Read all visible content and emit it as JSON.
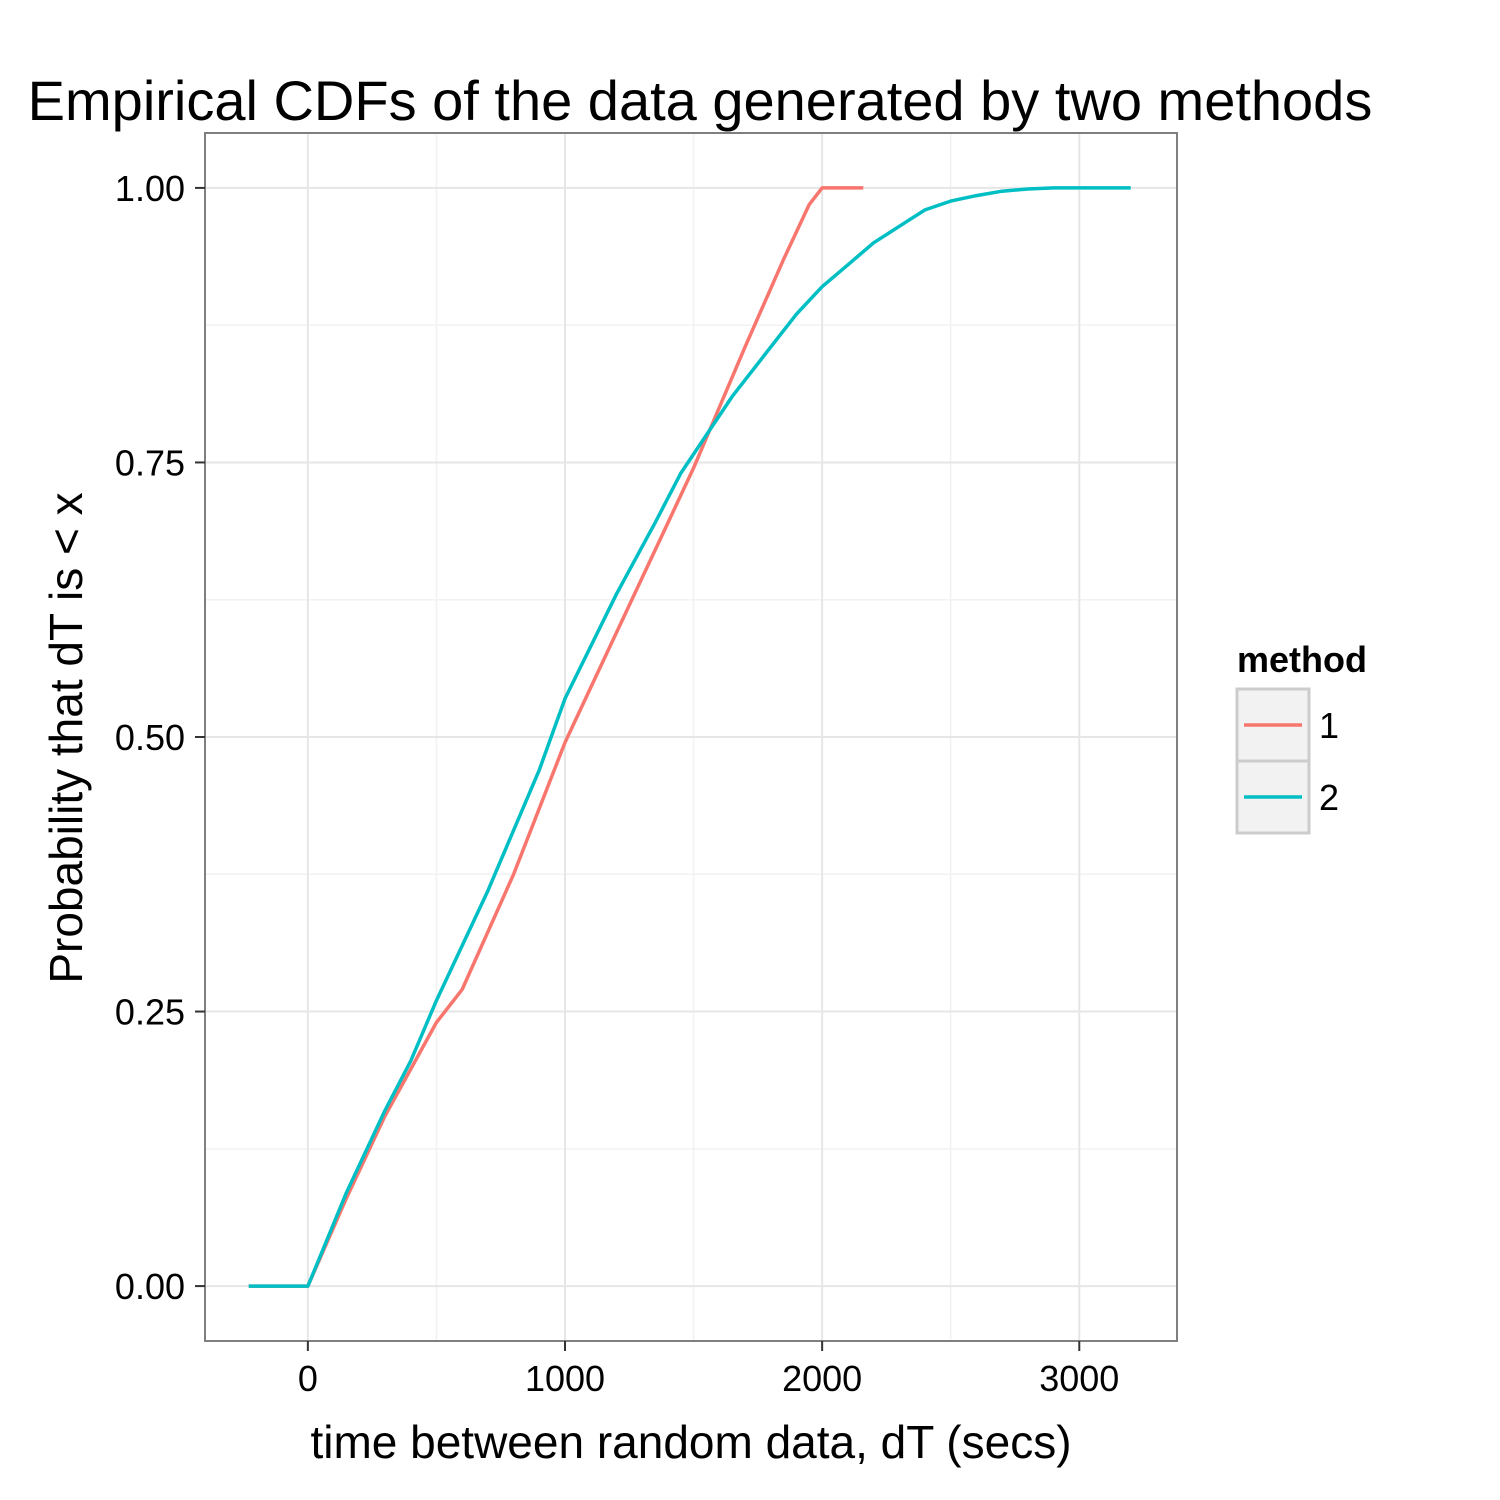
{
  "chart_data": {
    "type": "line",
    "title": "Empirical CDFs of the data generated by two methods",
    "xlabel": "time between random data, dT (secs)",
    "ylabel": "Probability that dT is < x",
    "xlim": [
      -400,
      3380
    ],
    "ylim": [
      -0.05,
      1.05
    ],
    "x_ticks": [
      0,
      1000,
      2000,
      3000
    ],
    "x_tick_labels": [
      "0",
      "1000",
      "2000",
      "3000"
    ],
    "x_minor_ticks": [
      -500,
      500,
      1500,
      2500
    ],
    "y_ticks": [
      0,
      0.25,
      0.5,
      0.75,
      1
    ],
    "y_tick_labels": [
      "0.00",
      "0.25",
      "0.50",
      "0.75",
      "1.00"
    ],
    "y_minor_ticks": [
      0.125,
      0.375,
      0.625,
      0.875
    ],
    "grid": true,
    "legend": {
      "title": "method",
      "position": "right"
    },
    "series": [
      {
        "name": "1",
        "color": "#F8766D",
        "x": [
          -230,
          0,
          150,
          300,
          500,
          600,
          800,
          1000,
          1200,
          1400,
          1500,
          1700,
          1850,
          1950,
          2000,
          2160
        ],
        "y": [
          0,
          0,
          0.08,
          0.155,
          0.24,
          0.27,
          0.375,
          0.495,
          0.595,
          0.695,
          0.745,
          0.855,
          0.935,
          0.985,
          1.0,
          1.0
        ]
      },
      {
        "name": "2",
        "color": "#00BFC4",
        "x": [
          -230,
          0,
          150,
          300,
          400,
          500,
          700,
          900,
          1000,
          1200,
          1350,
          1450,
          1550,
          1650,
          1800,
          1900,
          2000,
          2100,
          2200,
          2300,
          2400,
          2500,
          2600,
          2700,
          2800,
          2900,
          3000,
          3200
        ],
        "y": [
          0,
          0,
          0.085,
          0.16,
          0.205,
          0.26,
          0.36,
          0.47,
          0.535,
          0.63,
          0.695,
          0.74,
          0.775,
          0.81,
          0.855,
          0.885,
          0.91,
          0.93,
          0.95,
          0.965,
          0.98,
          0.988,
          0.993,
          0.997,
          0.999,
          1.0,
          1.0,
          1.0
        ]
      }
    ]
  }
}
